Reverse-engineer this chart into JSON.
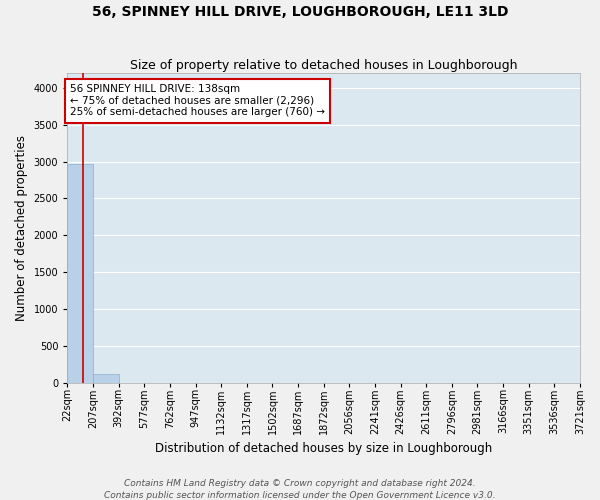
{
  "title": "56, SPINNEY HILL DRIVE, LOUGHBOROUGH, LE11 3LD",
  "subtitle": "Size of property relative to detached houses in Loughborough",
  "xlabel": "Distribution of detached houses by size in Loughborough",
  "ylabel": "Number of detached properties",
  "footnote1": "Contains HM Land Registry data © Crown copyright and database right 2024.",
  "footnote2": "Contains public sector information licensed under the Open Government Licence v3.0.",
  "bins": [
    22,
    207,
    392,
    577,
    762,
    947,
    1132,
    1317,
    1502,
    1687,
    1872,
    2056,
    2241,
    2426,
    2611,
    2796,
    2981,
    3166,
    3351,
    3536,
    3721
  ],
  "bar_heights": [
    2970,
    115,
    0,
    0,
    0,
    0,
    0,
    0,
    0,
    0,
    0,
    0,
    0,
    0,
    0,
    0,
    0,
    0,
    0,
    0
  ],
  "bar_color": "#b8d0e8",
  "bar_edge_color": "#8ab0cc",
  "property_size": 138,
  "property_line_color": "#cc0000",
  "annotation_text": "56 SPINNEY HILL DRIVE: 138sqm\n← 75% of detached houses are smaller (2,296)\n25% of semi-detached houses are larger (760) →",
  "annotation_box_color": "#ffffff",
  "annotation_box_edge_color": "#cc0000",
  "ylim": [
    0,
    4200
  ],
  "yticks": [
    0,
    500,
    1000,
    1500,
    2000,
    2500,
    3000,
    3500,
    4000
  ],
  "background_color": "#dce8f0",
  "grid_color": "#ffffff",
  "title_fontsize": 10,
  "subtitle_fontsize": 9,
  "tick_fontsize": 7,
  "axis_label_fontsize": 8.5,
  "footnote_fontsize": 6.5
}
